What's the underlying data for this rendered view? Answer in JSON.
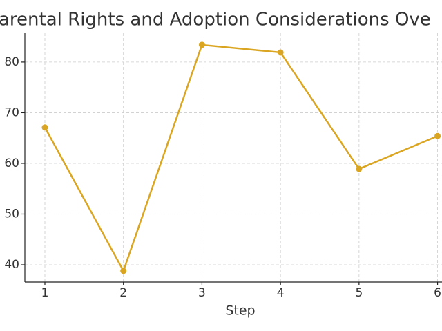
{
  "chart_data": {
    "type": "line",
    "title": "arental Rights and Adoption Considerations Ove",
    "x_label": "Step",
    "x": [
      1,
      2,
      3,
      4,
      5,
      6
    ],
    "series": [
      {
        "color": "#daa520",
        "values": [
          67.1,
          38.8,
          83.4,
          81.9,
          58.9,
          65.4
        ]
      }
    ],
    "xlim": [
      0.745,
      6.25
    ],
    "xticks": [
      1,
      2,
      3,
      4,
      5,
      6
    ],
    "ylim": [
      36.6,
      85.7
    ],
    "yticks": [
      40,
      50,
      60,
      70,
      80
    ],
    "grid": true
  }
}
